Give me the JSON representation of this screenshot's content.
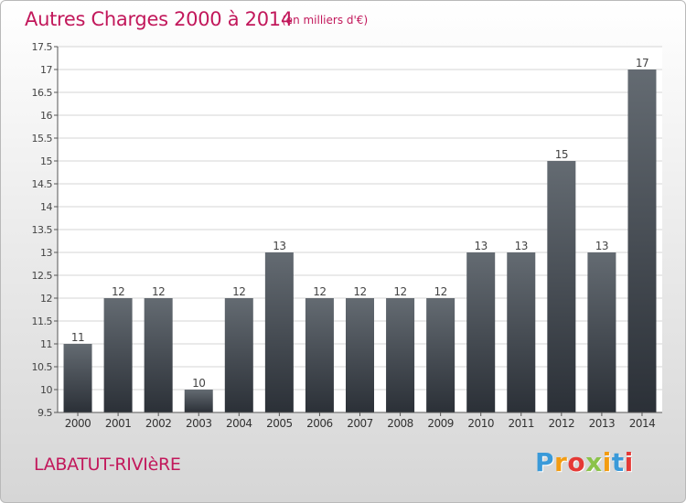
{
  "header": {
    "title": "Autres Charges 2000 à 2014",
    "subtitle": "(en milliers d'€)"
  },
  "footer": {
    "place": "LABATUT-RIVIèRE",
    "logo_letters": [
      "P",
      "r",
      "o",
      "x",
      "i",
      "t",
      "i"
    ],
    "logo_colors": [
      "#3a9ad9",
      "#f39c12",
      "#e53935",
      "#8bc34a",
      "#f39c12",
      "#3a9ad9",
      "#e53935"
    ]
  },
  "chart_data": {
    "type": "bar",
    "categories": [
      "2000",
      "2001",
      "2002",
      "2003",
      "2004",
      "2005",
      "2006",
      "2007",
      "2008",
      "2009",
      "2010",
      "2011",
      "2012",
      "2013",
      "2014"
    ],
    "values": [
      11,
      12,
      12,
      10,
      12,
      13,
      12,
      12,
      12,
      12,
      13,
      13,
      15,
      13,
      17
    ],
    "data_labels": [
      "11",
      "12",
      "12",
      "10",
      "12",
      "13",
      "12",
      "12",
      "12",
      "12",
      "13",
      "13",
      "15",
      "13",
      "17"
    ],
    "ylim": [
      9.5,
      17.5
    ],
    "yticks": [
      9.5,
      10,
      10.5,
      11,
      11.5,
      12,
      12.5,
      13,
      13.5,
      14,
      14.5,
      15,
      15.5,
      16,
      16.5,
      17,
      17.5
    ],
    "ytick_labels": [
      "9.5",
      "10",
      "10.5",
      "11",
      "11.5",
      "12",
      "12.5",
      "13",
      "13.5",
      "14",
      "14.5",
      "15",
      "15.5",
      "16",
      "16.5",
      "17",
      "17.5"
    ],
    "grid": true,
    "colors": {
      "bar_top": "#646b72",
      "bar_bottom": "#2b3037",
      "grid": "#d4d4d4",
      "axis": "#555555"
    }
  }
}
